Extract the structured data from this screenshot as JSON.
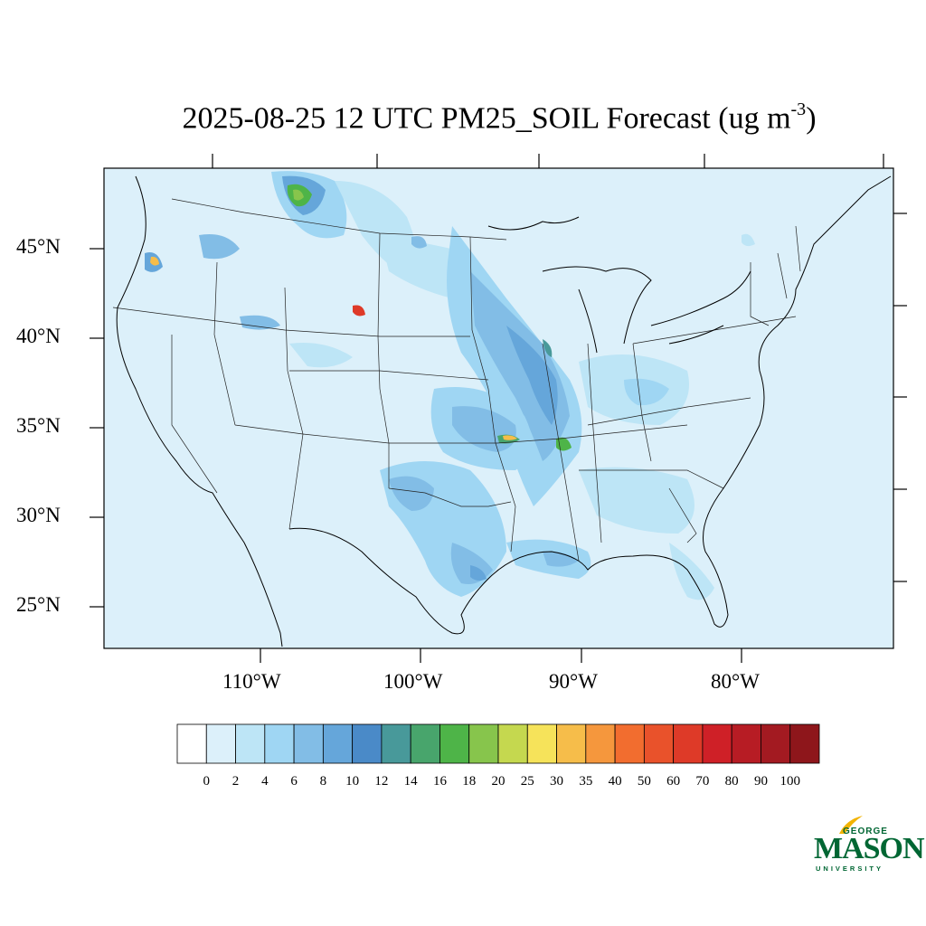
{
  "title": {
    "main": "2025-08-25 12 UTC PM25_SOIL Forecast (ug m",
    "superscript": "-3",
    "close": ")"
  },
  "map": {
    "lat_labels": [
      "45°N",
      "40°N",
      "35°N",
      "30°N",
      "25°N"
    ],
    "lon_labels": [
      "110°W",
      "100°W",
      "90°W",
      "80°W"
    ],
    "background_color": "#dcf0fa"
  },
  "colorbar": {
    "labels": [
      "0",
      "2",
      "4",
      "6",
      "8",
      "10",
      "12",
      "14",
      "16",
      "18",
      "20",
      "25",
      "30",
      "35",
      "40",
      "50",
      "60",
      "70",
      "80",
      "90",
      "100"
    ],
    "colors": [
      "#ffffff",
      "#dcf0fa",
      "#bde5f6",
      "#9fd6f3",
      "#82bde6",
      "#65a6da",
      "#4a8ac8",
      "#48999a",
      "#48a56c",
      "#4eb448",
      "#87c54c",
      "#c5d84f",
      "#f6e35a",
      "#f6bd4a",
      "#f5973d",
      "#f26d2f",
      "#e9522b",
      "#de3a28",
      "#cf2027",
      "#b71c24",
      "#a31a21",
      "#8e161b"
    ]
  },
  "logo": {
    "top": "GEORGE",
    "name": "MASON",
    "sub": "UNIVERSITY"
  }
}
